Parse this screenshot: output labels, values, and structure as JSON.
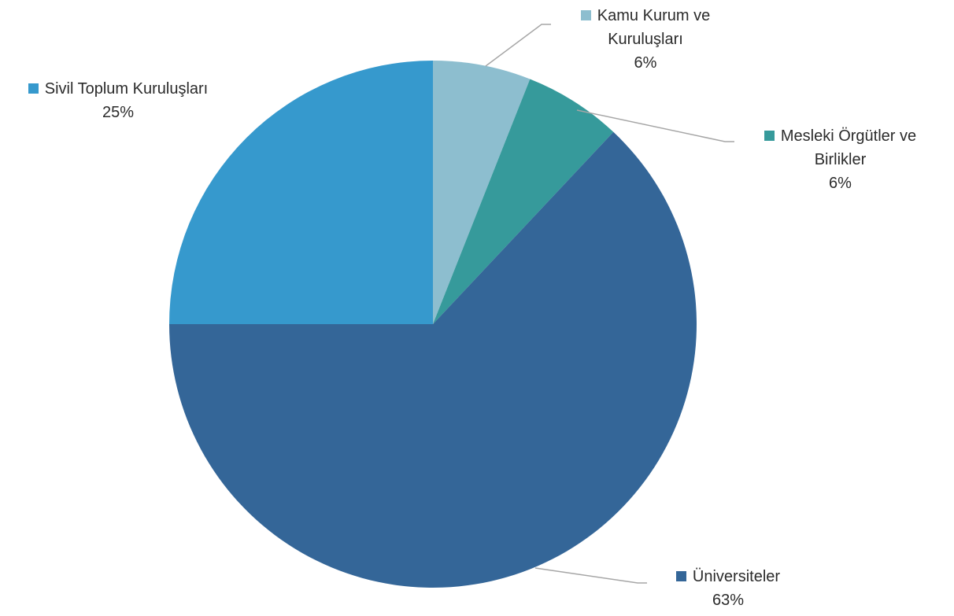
{
  "chart_data": {
    "type": "pie",
    "slices": [
      {
        "category_line1": "Kamu Kurum ve",
        "category_line2": "Kuruluşları",
        "value": 6,
        "value_label": "6%",
        "color": "#8dbecf"
      },
      {
        "category_line1": "Mesleki Örgütler ve",
        "category_line2": "Birlikler",
        "value": 6,
        "value_label": "6%",
        "color": "#369a9b"
      },
      {
        "category_line1": "Üniversiteler",
        "category_line2": "",
        "value": 63,
        "value_label": "63%",
        "color": "#346698"
      },
      {
        "category_line1": "Sivil Toplum Kuruluşları",
        "category_line2": "",
        "value": 25,
        "value_label": "25%",
        "color": "#3699cd"
      }
    ],
    "start_angle_deg": 0,
    "direction": "clockwise",
    "legend": "none",
    "data_labels": "outside-with-leader-lines"
  }
}
